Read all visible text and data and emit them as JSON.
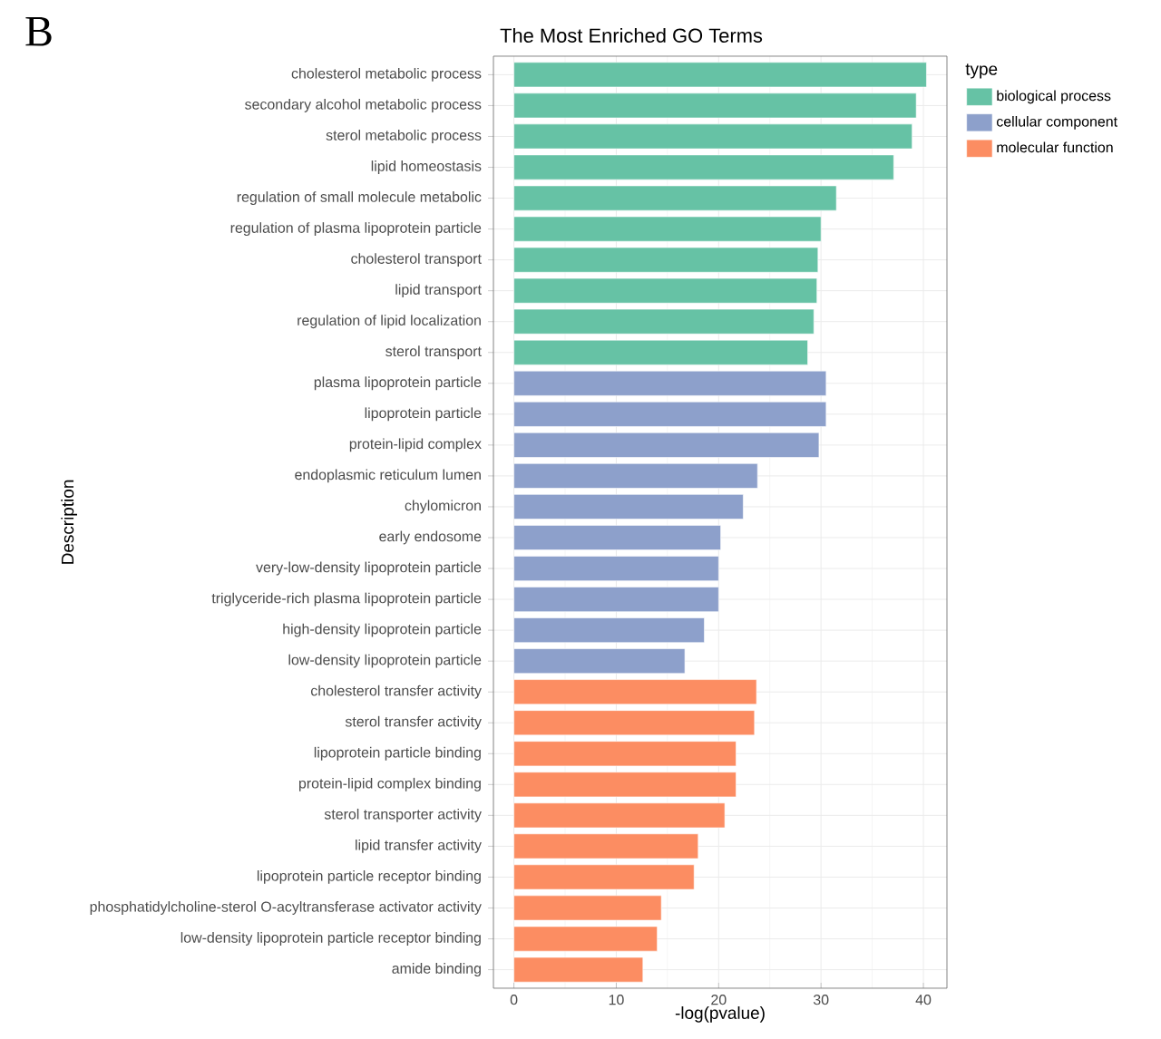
{
  "chart_data": {
    "type": "bar",
    "orientation": "horizontal",
    "title": "The Most Enriched GO Terms",
    "xlabel": "-log(pvalue)",
    "ylabel": "Description",
    "legend_title": "type",
    "legend": "right",
    "grid": true,
    "annotations": [
      "B"
    ],
    "categories": [
      "cholesterol metabolic process",
      "secondary alcohol metabolic process",
      "sterol metabolic process",
      "lipid homeostasis",
      "regulation of small molecule metabolic",
      "regulation of plasma lipoprotein particle",
      "cholesterol transport",
      "lipid transport",
      "regulation of lipid localization",
      "sterol transport",
      "plasma lipoprotein particle",
      "lipoprotein particle",
      "protein-lipid complex",
      "endoplasmic reticulum lumen",
      "chylomicron",
      "early endosome",
      "very-low-density lipoprotein particle",
      "triglyceride-rich plasma lipoprotein particle",
      "high-density lipoprotein particle",
      "low-density lipoprotein particle",
      "cholesterol transfer activity",
      "sterol transfer activity",
      "lipoprotein particle binding",
      "protein-lipid complex binding",
      "sterol transporter activity",
      "lipid transfer activity",
      "lipoprotein particle receptor binding",
      "phosphatidylcholine-sterol O-acyltransferase activator activity",
      "low-density lipoprotein particle receptor binding",
      "amide binding"
    ],
    "series": [
      {
        "name": "biological process",
        "color": "#66c2a5",
        "values": [
          40.3,
          39.3,
          38.9,
          37.1,
          31.5,
          30.0,
          29.7,
          29.6,
          29.3,
          28.7,
          null,
          null,
          null,
          null,
          null,
          null,
          null,
          null,
          null,
          null,
          null,
          null,
          null,
          null,
          null,
          null,
          null,
          null,
          null,
          null
        ]
      },
      {
        "name": "cellular component",
        "color": "#8da0cb",
        "values": [
          null,
          null,
          null,
          null,
          null,
          null,
          null,
          null,
          null,
          null,
          30.5,
          30.5,
          29.8,
          23.8,
          22.4,
          20.2,
          20.0,
          20.0,
          18.6,
          16.7,
          null,
          null,
          null,
          null,
          null,
          null,
          null,
          null,
          null,
          null
        ]
      },
      {
        "name": "molecular function",
        "color": "#fc8d62",
        "values": [
          null,
          null,
          null,
          null,
          null,
          null,
          null,
          null,
          null,
          null,
          null,
          null,
          null,
          null,
          null,
          null,
          null,
          null,
          null,
          null,
          23.7,
          23.5,
          21.7,
          21.7,
          20.6,
          18.0,
          17.6,
          14.4,
          14.0,
          12.6
        ]
      }
    ],
    "xlim": [
      -2.0,
      42.3
    ],
    "xticks": [
      0,
      10,
      20,
      30,
      40
    ]
  }
}
